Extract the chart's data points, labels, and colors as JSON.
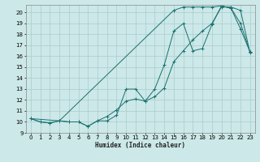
{
  "xlabel": "Humidex (Indice chaleur)",
  "xlim": [
    -0.5,
    23.5
  ],
  "ylim": [
    9.0,
    20.7
  ],
  "yticks": [
    9,
    10,
    11,
    12,
    13,
    14,
    15,
    16,
    17,
    18,
    19,
    20
  ],
  "xticks": [
    0,
    1,
    2,
    3,
    4,
    5,
    6,
    7,
    8,
    9,
    10,
    11,
    12,
    13,
    14,
    15,
    16,
    17,
    18,
    19,
    20,
    21,
    22,
    23
  ],
  "bg_color": "#cce8e8",
  "grid_color": "#aacccc",
  "line_color": "#1a7070",
  "lines": [
    {
      "x": [
        0,
        1,
        2,
        3,
        4,
        5,
        6,
        7,
        8,
        9,
        10,
        11,
        12,
        13,
        14,
        15,
        16,
        17,
        18,
        19,
        20,
        21,
        22,
        23
      ],
      "y": [
        10.3,
        10.0,
        9.9,
        10.1,
        10.0,
        10.0,
        9.6,
        10.1,
        10.1,
        10.6,
        13.0,
        13.0,
        11.9,
        13.0,
        15.2,
        18.3,
        19.0,
        16.5,
        16.7,
        18.9,
        20.6,
        20.4,
        18.5,
        16.4
      ]
    },
    {
      "x": [
        0,
        1,
        2,
        3,
        4,
        5,
        6,
        7,
        8,
        9,
        10,
        11,
        12,
        13,
        14,
        15,
        16,
        17,
        18,
        19,
        20,
        21,
        22,
        23
      ],
      "y": [
        10.3,
        10.0,
        9.9,
        10.1,
        10.0,
        10.0,
        9.6,
        10.1,
        10.5,
        11.1,
        11.9,
        12.1,
        11.9,
        12.3,
        13.1,
        15.5,
        16.5,
        17.5,
        18.3,
        19.0,
        20.5,
        20.5,
        20.2,
        16.3
      ]
    },
    {
      "x": [
        0,
        3,
        15,
        16,
        17,
        18,
        19,
        20,
        21,
        22,
        23
      ],
      "y": [
        10.3,
        10.1,
        20.2,
        20.5,
        20.5,
        20.5,
        20.5,
        20.6,
        20.4,
        19.0,
        16.4
      ]
    }
  ]
}
